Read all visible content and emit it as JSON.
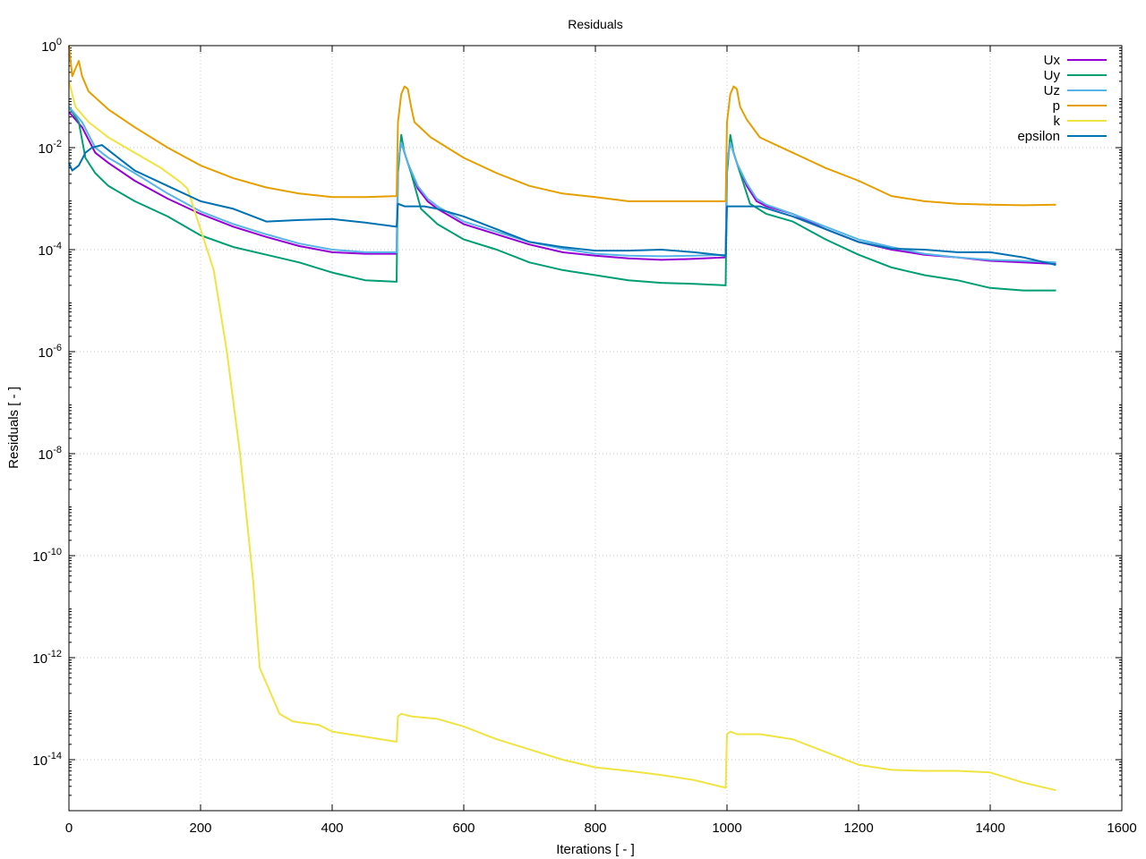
{
  "chart_data": {
    "type": "line",
    "title": "Residuals",
    "xlabel": "Iterations [ - ]",
    "ylabel": "Residuals [ - ]",
    "xlim": [
      0,
      1600
    ],
    "ylim_log10": [
      -15,
      0
    ],
    "yscale": "log",
    "grid": true,
    "legend_position": "top-right",
    "x_ticks": [
      0,
      200,
      400,
      600,
      800,
      1000,
      1200,
      1400,
      1600
    ],
    "x_tick_labels": [
      "0",
      "200",
      "400",
      "600",
      "800",
      "1000",
      "1200",
      "1400",
      "1600"
    ],
    "y_ticks": [
      {
        "exp": 0,
        "base": "10",
        "sup": "0"
      },
      {
        "exp": -2,
        "base": "10",
        "sup": "-2"
      },
      {
        "exp": -4,
        "base": "10",
        "sup": "-4"
      },
      {
        "exp": -6,
        "base": "10",
        "sup": "-6"
      },
      {
        "exp": -8,
        "base": "10",
        "sup": "-8"
      },
      {
        "exp": -10,
        "base": "10",
        "sup": "-10"
      },
      {
        "exp": -12,
        "base": "10",
        "sup": "-12"
      },
      {
        "exp": -14,
        "base": "10",
        "sup": "-14"
      }
    ],
    "series": [
      {
        "name": "Ux",
        "color": "#9400d3",
        "points": [
          [
            0,
            -1.3
          ],
          [
            20,
            -1.6
          ],
          [
            40,
            -2.1
          ],
          [
            60,
            -2.3
          ],
          [
            100,
            -2.65
          ],
          [
            150,
            -3.0
          ],
          [
            200,
            -3.3
          ],
          [
            250,
            -3.55
          ],
          [
            300,
            -3.75
          ],
          [
            350,
            -3.93
          ],
          [
            400,
            -4.05
          ],
          [
            450,
            -4.08
          ],
          [
            498,
            -4.08
          ],
          [
            500,
            -2.3
          ],
          [
            505,
            -1.9
          ],
          [
            515,
            -2.3
          ],
          [
            530,
            -2.8
          ],
          [
            545,
            -3.05
          ],
          [
            560,
            -3.2
          ],
          [
            600,
            -3.5
          ],
          [
            650,
            -3.7
          ],
          [
            700,
            -3.9
          ],
          [
            750,
            -4.05
          ],
          [
            800,
            -4.12
          ],
          [
            850,
            -4.17
          ],
          [
            900,
            -4.2
          ],
          [
            950,
            -4.18
          ],
          [
            998,
            -4.15
          ],
          [
            1000,
            -2.3
          ],
          [
            1005,
            -1.9
          ],
          [
            1015,
            -2.3
          ],
          [
            1030,
            -2.75
          ],
          [
            1045,
            -3.05
          ],
          [
            1060,
            -3.15
          ],
          [
            1100,
            -3.3
          ],
          [
            1150,
            -3.6
          ],
          [
            1200,
            -3.85
          ],
          [
            1250,
            -4.0
          ],
          [
            1300,
            -4.1
          ],
          [
            1350,
            -4.15
          ],
          [
            1400,
            -4.22
          ],
          [
            1450,
            -4.25
          ],
          [
            1500,
            -4.28
          ]
        ]
      },
      {
        "name": "Uy",
        "color": "#009e73",
        "points": [
          [
            0,
            -1.2
          ],
          [
            15,
            -1.5
          ],
          [
            25,
            -2.2
          ],
          [
            30,
            -2.3
          ],
          [
            40,
            -2.5
          ],
          [
            60,
            -2.75
          ],
          [
            100,
            -3.05
          ],
          [
            150,
            -3.35
          ],
          [
            200,
            -3.72
          ],
          [
            250,
            -3.95
          ],
          [
            300,
            -4.1
          ],
          [
            350,
            -4.25
          ],
          [
            400,
            -4.45
          ],
          [
            450,
            -4.6
          ],
          [
            498,
            -4.63
          ],
          [
            500,
            -2.5
          ],
          [
            505,
            -1.75
          ],
          [
            510,
            -2.1
          ],
          [
            520,
            -2.5
          ],
          [
            535,
            -3.2
          ],
          [
            560,
            -3.5
          ],
          [
            600,
            -3.8
          ],
          [
            650,
            -4.0
          ],
          [
            700,
            -4.25
          ],
          [
            750,
            -4.4
          ],
          [
            800,
            -4.5
          ],
          [
            850,
            -4.6
          ],
          [
            900,
            -4.65
          ],
          [
            950,
            -4.67
          ],
          [
            998,
            -4.7
          ],
          [
            1000,
            -2.5
          ],
          [
            1005,
            -1.75
          ],
          [
            1010,
            -2.1
          ],
          [
            1020,
            -2.5
          ],
          [
            1035,
            -3.1
          ],
          [
            1060,
            -3.3
          ],
          [
            1100,
            -3.45
          ],
          [
            1150,
            -3.8
          ],
          [
            1200,
            -4.1
          ],
          [
            1250,
            -4.35
          ],
          [
            1300,
            -4.5
          ],
          [
            1350,
            -4.6
          ],
          [
            1400,
            -4.75
          ],
          [
            1450,
            -4.8
          ],
          [
            1500,
            -4.8
          ]
        ]
      },
      {
        "name": "Uz",
        "color": "#56b4e9",
        "points": [
          [
            0,
            -1.2
          ],
          [
            20,
            -1.5
          ],
          [
            40,
            -2.0
          ],
          [
            60,
            -2.2
          ],
          [
            100,
            -2.5
          ],
          [
            150,
            -2.9
          ],
          [
            200,
            -3.25
          ],
          [
            250,
            -3.5
          ],
          [
            300,
            -3.7
          ],
          [
            350,
            -3.88
          ],
          [
            400,
            -4.0
          ],
          [
            450,
            -4.05
          ],
          [
            498,
            -4.05
          ],
          [
            500,
            -2.3
          ],
          [
            505,
            -1.9
          ],
          [
            515,
            -2.3
          ],
          [
            530,
            -2.75
          ],
          [
            545,
            -3.0
          ],
          [
            560,
            -3.15
          ],
          [
            600,
            -3.45
          ],
          [
            650,
            -3.65
          ],
          [
            700,
            -3.85
          ],
          [
            750,
            -3.98
          ],
          [
            800,
            -4.08
          ],
          [
            850,
            -4.12
          ],
          [
            900,
            -4.13
          ],
          [
            950,
            -4.12
          ],
          [
            998,
            -4.1
          ],
          [
            1000,
            -2.3
          ],
          [
            1005,
            -1.9
          ],
          [
            1015,
            -2.3
          ],
          [
            1030,
            -2.7
          ],
          [
            1045,
            -3.0
          ],
          [
            1060,
            -3.12
          ],
          [
            1100,
            -3.3
          ],
          [
            1150,
            -3.55
          ],
          [
            1200,
            -3.8
          ],
          [
            1250,
            -3.95
          ],
          [
            1300,
            -4.08
          ],
          [
            1350,
            -4.15
          ],
          [
            1400,
            -4.2
          ],
          [
            1450,
            -4.22
          ],
          [
            1500,
            -4.25
          ]
        ]
      },
      {
        "name": "p",
        "color": "#e69f00",
        "points": [
          [
            0,
            0.0
          ],
          [
            5,
            -0.6
          ],
          [
            10,
            -0.45
          ],
          [
            15,
            -0.3
          ],
          [
            20,
            -0.6
          ],
          [
            30,
            -0.9
          ],
          [
            60,
            -1.25
          ],
          [
            100,
            -1.6
          ],
          [
            150,
            -2.0
          ],
          [
            200,
            -2.35
          ],
          [
            250,
            -2.6
          ],
          [
            300,
            -2.78
          ],
          [
            350,
            -2.9
          ],
          [
            400,
            -2.97
          ],
          [
            450,
            -2.97
          ],
          [
            498,
            -2.95
          ],
          [
            500,
            -1.5
          ],
          [
            505,
            -0.95
          ],
          [
            510,
            -0.8
          ],
          [
            515,
            -0.85
          ],
          [
            520,
            -1.2
          ],
          [
            525,
            -1.5
          ],
          [
            550,
            -1.8
          ],
          [
            600,
            -2.2
          ],
          [
            650,
            -2.5
          ],
          [
            700,
            -2.75
          ],
          [
            750,
            -2.9
          ],
          [
            800,
            -2.97
          ],
          [
            850,
            -3.05
          ],
          [
            900,
            -3.05
          ],
          [
            950,
            -3.05
          ],
          [
            998,
            -3.05
          ],
          [
            1000,
            -1.5
          ],
          [
            1005,
            -0.95
          ],
          [
            1010,
            -0.8
          ],
          [
            1015,
            -0.85
          ],
          [
            1020,
            -1.2
          ],
          [
            1030,
            -1.45
          ],
          [
            1050,
            -1.8
          ],
          [
            1100,
            -2.1
          ],
          [
            1150,
            -2.4
          ],
          [
            1200,
            -2.65
          ],
          [
            1250,
            -2.95
          ],
          [
            1300,
            -3.05
          ],
          [
            1350,
            -3.1
          ],
          [
            1400,
            -3.12
          ],
          [
            1450,
            -3.13
          ],
          [
            1500,
            -3.12
          ]
        ]
      },
      {
        "name": "k",
        "color": "#f0e442",
        "points": [
          [
            0,
            -0.7
          ],
          [
            10,
            -1.2
          ],
          [
            30,
            -1.5
          ],
          [
            60,
            -1.8
          ],
          [
            100,
            -2.1
          ],
          [
            140,
            -2.4
          ],
          [
            170,
            -2.68
          ],
          [
            180,
            -2.8
          ],
          [
            190,
            -3.2
          ],
          [
            200,
            -3.6
          ],
          [
            220,
            -4.4
          ],
          [
            240,
            -6.0
          ],
          [
            260,
            -8.0
          ],
          [
            280,
            -10.5
          ],
          [
            290,
            -12.2
          ],
          [
            300,
            -12.5
          ],
          [
            310,
            -12.8
          ],
          [
            320,
            -13.1
          ],
          [
            340,
            -13.25
          ],
          [
            380,
            -13.32
          ],
          [
            400,
            -13.45
          ],
          [
            450,
            -13.55
          ],
          [
            498,
            -13.65
          ],
          [
            500,
            -13.15
          ],
          [
            505,
            -13.1
          ],
          [
            520,
            -13.15
          ],
          [
            560,
            -13.2
          ],
          [
            600,
            -13.35
          ],
          [
            650,
            -13.6
          ],
          [
            700,
            -13.8
          ],
          [
            750,
            -14.0
          ],
          [
            800,
            -14.15
          ],
          [
            850,
            -14.22
          ],
          [
            900,
            -14.3
          ],
          [
            950,
            -14.4
          ],
          [
            998,
            -14.55
          ],
          [
            1000,
            -13.5
          ],
          [
            1005,
            -13.45
          ],
          [
            1015,
            -13.5
          ],
          [
            1050,
            -13.5
          ],
          [
            1100,
            -13.6
          ],
          [
            1150,
            -13.85
          ],
          [
            1200,
            -14.1
          ],
          [
            1250,
            -14.2
          ],
          [
            1300,
            -14.22
          ],
          [
            1350,
            -14.22
          ],
          [
            1400,
            -14.25
          ],
          [
            1450,
            -14.45
          ],
          [
            1500,
            -14.6
          ]
        ]
      },
      {
        "name": "epsilon",
        "color": "#0072b2",
        "points": [
          [
            0,
            -2.3
          ],
          [
            5,
            -2.45
          ],
          [
            15,
            -2.35
          ],
          [
            25,
            -2.1
          ],
          [
            35,
            -2.0
          ],
          [
            50,
            -1.95
          ],
          [
            75,
            -2.2
          ],
          [
            100,
            -2.45
          ],
          [
            150,
            -2.75
          ],
          [
            200,
            -3.05
          ],
          [
            250,
            -3.2
          ],
          [
            300,
            -3.45
          ],
          [
            350,
            -3.42
          ],
          [
            400,
            -3.4
          ],
          [
            450,
            -3.47
          ],
          [
            498,
            -3.55
          ],
          [
            500,
            -3.1
          ],
          [
            510,
            -3.15
          ],
          [
            540,
            -3.15
          ],
          [
            560,
            -3.2
          ],
          [
            600,
            -3.35
          ],
          [
            650,
            -3.6
          ],
          [
            700,
            -3.85
          ],
          [
            750,
            -3.95
          ],
          [
            800,
            -4.02
          ],
          [
            850,
            -4.02
          ],
          [
            900,
            -4.0
          ],
          [
            950,
            -4.05
          ],
          [
            998,
            -4.12
          ],
          [
            1000,
            -3.15
          ],
          [
            1020,
            -3.15
          ],
          [
            1050,
            -3.15
          ],
          [
            1100,
            -3.35
          ],
          [
            1150,
            -3.6
          ],
          [
            1200,
            -3.85
          ],
          [
            1250,
            -3.98
          ],
          [
            1300,
            -4.0
          ],
          [
            1350,
            -4.05
          ],
          [
            1400,
            -4.05
          ],
          [
            1450,
            -4.15
          ],
          [
            1500,
            -4.3
          ]
        ]
      }
    ]
  }
}
